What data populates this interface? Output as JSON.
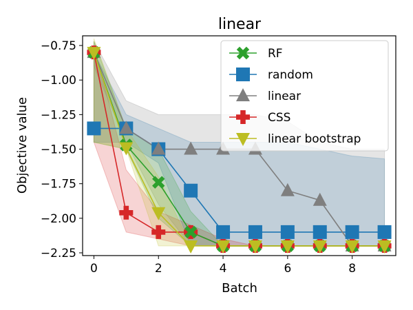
{
  "chart_data": {
    "type": "line",
    "title": "linear",
    "xlabel": "Batch",
    "ylabel": "Objective value",
    "xlim": [
      -0.35,
      9.35
    ],
    "ylim": [
      -2.27,
      -0.68
    ],
    "xticks": [
      0,
      2,
      4,
      6,
      8
    ],
    "xtick_labels": [
      "0",
      "2",
      "4",
      "6",
      "8"
    ],
    "yticks": [
      -0.75,
      -1.0,
      -1.25,
      -1.5,
      -1.75,
      -2.0,
      -2.25
    ],
    "ytick_labels": [
      "−0.75",
      "−1.00",
      "−1.25",
      "−1.50",
      "−1.75",
      "−2.00",
      "−2.25"
    ],
    "legend_position": "top-right",
    "x": [
      0,
      1,
      2,
      3,
      4,
      5,
      6,
      7,
      8,
      9
    ],
    "series": [
      {
        "name": "random",
        "color": "#1f77b4",
        "marker": "square",
        "values": [
          -1.35,
          -1.35,
          -1.5,
          -1.8,
          -2.1,
          -2.1,
          -2.1,
          -2.1,
          -2.1,
          -2.1
        ],
        "upper": [
          -0.8,
          -1.25,
          -1.35,
          -1.45,
          -1.45,
          -1.45,
          -1.45,
          -1.5,
          -1.55,
          -1.57
        ],
        "lower": [
          -1.45,
          -1.45,
          -1.6,
          -2.2,
          -2.2,
          -2.2,
          -2.2,
          -2.2,
          -2.2,
          -2.2
        ]
      },
      {
        "name": "linear",
        "color": "#7f7f7f",
        "marker": "triangle-up",
        "values": [
          -0.8,
          -1.35,
          -1.5,
          -1.5,
          -1.5,
          -1.5,
          -1.8,
          -1.87,
          -2.2,
          -2.2
        ],
        "upper": [
          -0.72,
          -1.15,
          -1.25,
          -1.25,
          -1.25,
          -1.25,
          -1.3,
          -1.45,
          -1.5,
          -1.5
        ],
        "lower": [
          -0.9,
          -1.45,
          -1.9,
          -2.2,
          -2.2,
          -2.2,
          -2.2,
          -2.2,
          -2.2,
          -2.2
        ]
      },
      {
        "name": "CSS",
        "color": "#d62728",
        "marker": "plus",
        "values": [
          -0.8,
          -1.96,
          -2.1,
          -2.1,
          -2.2,
          -2.2,
          -2.2,
          -2.2,
          -2.2,
          -2.2
        ],
        "upper": [
          -0.75,
          -1.65,
          -1.95,
          -2.05,
          -2.15,
          -2.2,
          -2.2,
          -2.2,
          -2.2,
          -2.2
        ],
        "lower": [
          -1.45,
          -2.1,
          -2.15,
          -2.2,
          -2.2,
          -2.2,
          -2.2,
          -2.2,
          -2.2,
          -2.2
        ]
      },
      {
        "name": "RF",
        "color": "#2ca02c",
        "marker": "x",
        "values": [
          -0.8,
          -1.47,
          -1.74,
          -2.1,
          -2.2,
          -2.2,
          -2.2,
          -2.2,
          -2.2,
          -2.2
        ],
        "upper": [
          -0.72,
          -1.35,
          -1.5,
          -1.95,
          -2.2,
          -2.2,
          -2.2,
          -2.2,
          -2.2,
          -2.2
        ],
        "lower": [
          -1.45,
          -1.5,
          -2.0,
          -2.2,
          -2.2,
          -2.2,
          -2.2,
          -2.2,
          -2.2,
          -2.2
        ]
      },
      {
        "name": "linear bootstrap",
        "color": "#bcbd22",
        "marker": "triangle-down",
        "values": [
          -0.8,
          -1.49,
          -1.96,
          -2.2,
          -2.2,
          -2.2,
          -2.2,
          -2.2,
          -2.2,
          -2.2
        ],
        "upper": [
          -0.7,
          -1.35,
          -1.7,
          -2.2,
          -2.2,
          -2.2,
          -2.2,
          -2.2,
          -2.2,
          -2.2
        ],
        "lower": [
          -1.45,
          -1.5,
          -2.2,
          -2.2,
          -2.2,
          -2.2,
          -2.2,
          -2.2,
          -2.2,
          -2.2
        ]
      }
    ],
    "legend_order": [
      "RF",
      "random",
      "linear",
      "CSS",
      "linear bootstrap"
    ]
  }
}
